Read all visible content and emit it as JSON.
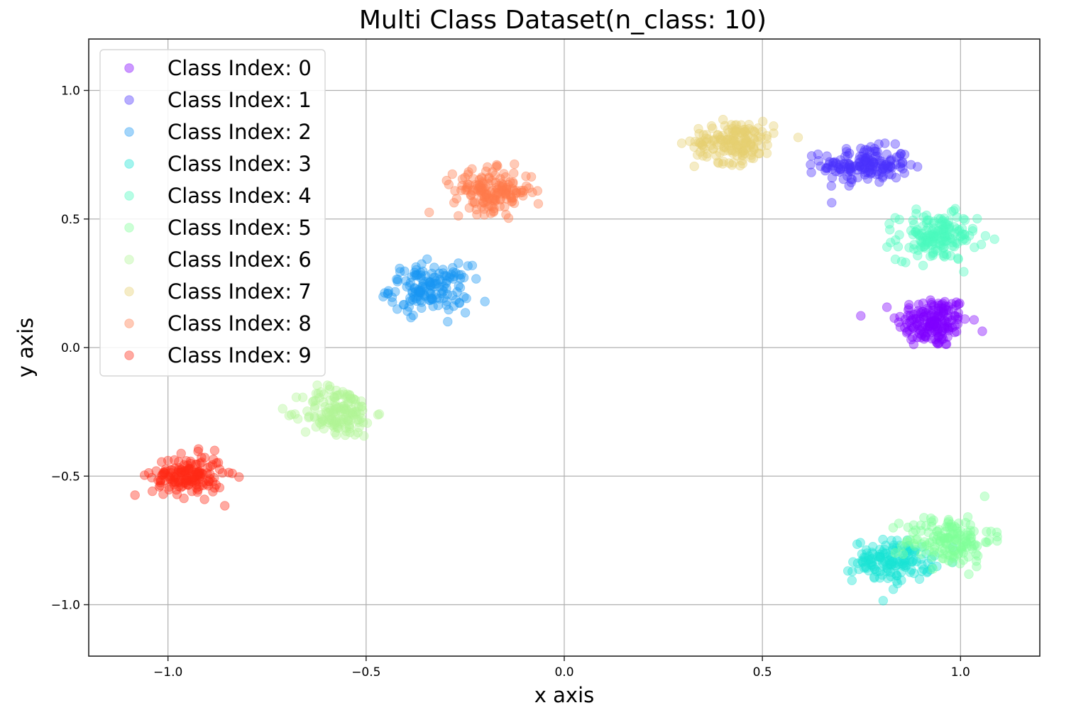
{
  "chart_data": {
    "type": "scatter",
    "title": "Multi Class Dataset(n_class: 10)",
    "xlabel": "x axis",
    "ylabel": "y axis",
    "xlim": [
      -1.2,
      1.2
    ],
    "ylim": [
      -1.2,
      1.2
    ],
    "xticks": [
      -1.0,
      -0.5,
      0.0,
      0.5,
      1.0
    ],
    "xtick_labels": [
      "−1.0",
      "−0.5",
      "0.0",
      "0.5",
      "1.0"
    ],
    "yticks": [
      -1.0,
      -0.5,
      0.0,
      0.5,
      1.0
    ],
    "ytick_labels": [
      "−1.0",
      "−0.5",
      "0.0",
      "0.5",
      "1.0"
    ],
    "grid": true,
    "legend_position": "upper-left",
    "marker_alpha": 0.4,
    "series": [
      {
        "name": "Class Index: 0",
        "color": "#8000ff",
        "center": [
          0.93,
          0.1
        ],
        "spread": [
          0.045,
          0.05
        ],
        "count": 170
      },
      {
        "name": "Class Index: 1",
        "color": "#4b32fc",
        "center": [
          0.76,
          0.71
        ],
        "spread": [
          0.055,
          0.035
        ],
        "count": 160
      },
      {
        "name": "Class Index: 2",
        "color": "#1996f3",
        "center": [
          -0.34,
          0.23
        ],
        "spread": [
          0.05,
          0.045
        ],
        "count": 150
      },
      {
        "name": "Class Index: 3",
        "color": "#1ae4d4",
        "center": [
          0.83,
          -0.83
        ],
        "spread": [
          0.05,
          0.04
        ],
        "count": 150
      },
      {
        "name": "Class Index: 4",
        "color": "#4cfbbf",
        "center": [
          0.94,
          0.43
        ],
        "spread": [
          0.05,
          0.045
        ],
        "count": 160
      },
      {
        "name": "Class Index: 5",
        "color": "#80ff99",
        "center": [
          0.97,
          -0.75
        ],
        "spread": [
          0.055,
          0.05
        ],
        "count": 150
      },
      {
        "name": "Class Index: 6",
        "color": "#b2f496",
        "center": [
          -0.57,
          -0.25
        ],
        "spread": [
          0.045,
          0.05
        ],
        "count": 150
      },
      {
        "name": "Class Index: 7",
        "color": "#e6cf70",
        "center": [
          0.43,
          0.8
        ],
        "spread": [
          0.05,
          0.04
        ],
        "count": 160
      },
      {
        "name": "Class Index: 8",
        "color": "#ff7a4a",
        "center": [
          -0.18,
          0.61
        ],
        "spread": [
          0.05,
          0.04
        ],
        "count": 160
      },
      {
        "name": "Class Index: 9",
        "color": "#ff2a16",
        "center": [
          -0.95,
          -0.5
        ],
        "spread": [
          0.045,
          0.04
        ],
        "count": 160
      }
    ]
  }
}
